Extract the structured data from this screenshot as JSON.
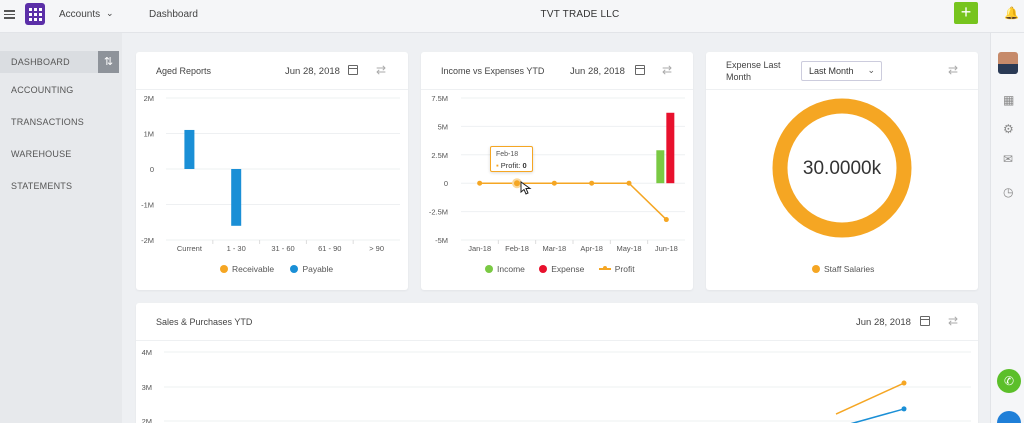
{
  "topbar": {
    "app_name": "Accounts",
    "breadcrumb": "Dashboard",
    "company": "TVT TRADE LLC",
    "add_label": "+"
  },
  "sidebar": {
    "items": [
      {
        "label": "DASHBOARD",
        "active": true
      },
      {
        "label": "ACCOUNTING"
      },
      {
        "label": "TRANSACTIONS"
      },
      {
        "label": "WAREHOUSE"
      },
      {
        "label": "STATEMENTS"
      }
    ]
  },
  "colors": {
    "accent": "#76c41e",
    "brand": "#5b2fa8",
    "receivable": "#f5a623",
    "payable": "#1a8fd6",
    "income": "#7ac943",
    "expense": "#e8112d",
    "profit": "#f5a623"
  },
  "aged": {
    "title": "Aged Reports",
    "date": "Jun 28, 2018",
    "legend": [
      "Receivable",
      "Payable"
    ]
  },
  "income": {
    "title": "Income vs Expenses YTD",
    "date": "Jun 28, 2018",
    "legend": [
      "Income",
      "Expense",
      "Profit"
    ],
    "tooltip": {
      "month": "Feb-18",
      "label": "Profit:",
      "value": "0"
    }
  },
  "expense": {
    "title_line1": "Expense Last",
    "title_line2": "Month",
    "select_value": "Last Month",
    "center_value": "30.0000k",
    "legend": [
      "Staff Salaries"
    ]
  },
  "sales": {
    "title": "Sales & Purchases YTD",
    "date": "Jun 28, 2018"
  },
  "chart_data": [
    {
      "type": "bar",
      "title": "Aged Reports",
      "categories": [
        "Current",
        "1 - 30",
        "31 - 60",
        "61 - 90",
        "> 90"
      ],
      "y_ticks": [
        "2M",
        "1M",
        "0",
        "-1M",
        "-2M"
      ],
      "ylim": [
        -2000000,
        2000000
      ],
      "series": [
        {
          "name": "Receivable",
          "values": [
            0,
            0,
            0,
            0,
            0
          ]
        },
        {
          "name": "Payable",
          "values": [
            1100000,
            -1600000,
            0,
            0,
            0
          ]
        }
      ],
      "legend": "bottom"
    },
    {
      "type": "line",
      "title": "Income vs Expenses YTD",
      "categories": [
        "Jan-18",
        "Feb-18",
        "Mar-18",
        "Apr-18",
        "May-18",
        "Jun-18"
      ],
      "y_ticks": [
        "7.5M",
        "5M",
        "2.5M",
        "0",
        "-2.5M",
        "-5M"
      ],
      "ylim": [
        -5000000,
        7500000
      ],
      "series": [
        {
          "name": "Income",
          "values": [
            0,
            0,
            0,
            0,
            0,
            2900000
          ]
        },
        {
          "name": "Expense",
          "values": [
            0,
            0,
            0,
            0,
            0,
            6200000
          ]
        },
        {
          "name": "Profit",
          "values": [
            0,
            0,
            0,
            0,
            0,
            -3200000
          ]
        }
      ],
      "legend": "bottom"
    },
    {
      "type": "pie",
      "title": "Expense Last Month",
      "categories": [
        "Staff Salaries"
      ],
      "values": [
        30000
      ],
      "legend": "bottom"
    },
    {
      "type": "line",
      "title": "Sales & Purchases YTD",
      "y_ticks": [
        "4M",
        "3M",
        "2M"
      ],
      "series": [
        {
          "values": [
            2200000,
            3100000
          ]
        },
        {
          "values": [
            1800000,
            2350000
          ]
        }
      ]
    }
  ]
}
